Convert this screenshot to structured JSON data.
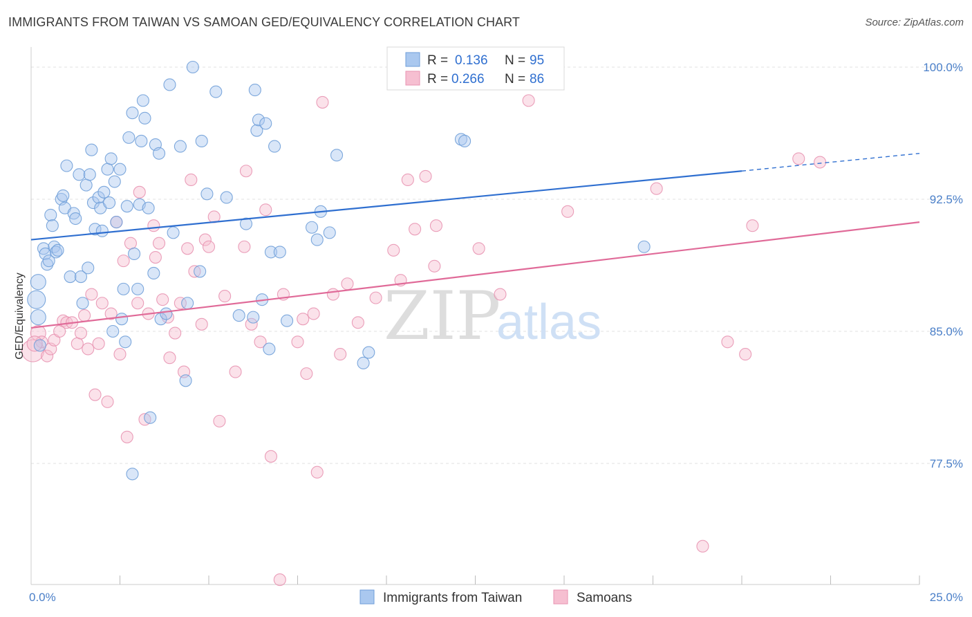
{
  "header": {
    "title": "IMMIGRANTS FROM TAIWAN VS SAMOAN GED/EQUIVALENCY CORRELATION CHART",
    "source": "Source: ZipAtlas.com"
  },
  "colors": {
    "blue_fill": "#aac8ef",
    "blue_stroke": "#6f9ed8",
    "blue_line": "#2f6fd0",
    "pink_fill": "#f6bfd1",
    "pink_stroke": "#e893b1",
    "pink_line": "#e06a98",
    "value_text": "#2f6fd0",
    "grid": "#e0e0e0",
    "watermark": "#d8d8d8"
  },
  "legend": {
    "r_label": "R =",
    "n_label": "N =",
    "rows": [
      {
        "r": "0.136",
        "n": "95"
      },
      {
        "r": "0.266",
        "n": "86"
      }
    ]
  },
  "watermark": {
    "zip": "ZIP",
    "atlas": "atlas"
  },
  "chart_data": {
    "type": "scatter",
    "xlabel": "",
    "ylabel": "GED/Equivalency",
    "xlim": [
      0,
      25
    ],
    "ylim": [
      71,
      100.7
    ],
    "x_tick_labels": [
      {
        "value": 0,
        "label": "0.0%"
      },
      {
        "value": 25,
        "label": "25.0%"
      }
    ],
    "y_tick_labels": [
      {
        "value": 100,
        "label": "100.0%"
      },
      {
        "value": 92.5,
        "label": "92.5%"
      },
      {
        "value": 85,
        "label": "85.0%"
      },
      {
        "value": 77.5,
        "label": "77.5%"
      }
    ],
    "grid": "horizontal dashed",
    "series": [
      {
        "name": "Immigrants from Taiwan",
        "color": "#6f9ed8",
        "trend": {
          "x": [
            0,
            20,
            25
          ],
          "y": [
            90.2,
            94.1,
            95.1
          ],
          "dashed_from": 20
        },
        "points": [
          {
            "x": 0.15,
            "y": 86.8,
            "s": 3
          },
          {
            "x": 0.2,
            "y": 85.8,
            "s": 2
          },
          {
            "x": 0.2,
            "y": 87.8,
            "s": 2
          },
          {
            "x": 0.25,
            "y": 84.2,
            "s": 1
          },
          {
            "x": 0.35,
            "y": 89.7,
            "s": 1
          },
          {
            "x": 0.4,
            "y": 89.4,
            "s": 1
          },
          {
            "x": 0.45,
            "y": 88.8,
            "s": 1
          },
          {
            "x": 0.5,
            "y": 89.0,
            "s": 1
          },
          {
            "x": 0.55,
            "y": 91.6,
            "s": 1
          },
          {
            "x": 0.6,
            "y": 91.0,
            "s": 1
          },
          {
            "x": 0.65,
            "y": 89.8,
            "s": 1
          },
          {
            "x": 0.7,
            "y": 89.5,
            "s": 1
          },
          {
            "x": 0.75,
            "y": 89.6,
            "s": 1
          },
          {
            "x": 0.85,
            "y": 92.5,
            "s": 1
          },
          {
            "x": 0.9,
            "y": 92.7,
            "s": 1
          },
          {
            "x": 0.95,
            "y": 92.0,
            "s": 1
          },
          {
            "x": 1.0,
            "y": 94.4,
            "s": 1
          },
          {
            "x": 1.1,
            "y": 88.1,
            "s": 1
          },
          {
            "x": 1.2,
            "y": 91.7,
            "s": 1
          },
          {
            "x": 1.25,
            "y": 91.4,
            "s": 1
          },
          {
            "x": 1.35,
            "y": 93.9,
            "s": 1
          },
          {
            "x": 1.4,
            "y": 88.1,
            "s": 1
          },
          {
            "x": 1.45,
            "y": 86.6,
            "s": 1
          },
          {
            "x": 1.55,
            "y": 93.3,
            "s": 1
          },
          {
            "x": 1.6,
            "y": 88.6,
            "s": 1
          },
          {
            "x": 1.65,
            "y": 93.9,
            "s": 1
          },
          {
            "x": 1.7,
            "y": 95.3,
            "s": 1
          },
          {
            "x": 1.75,
            "y": 92.3,
            "s": 1
          },
          {
            "x": 1.8,
            "y": 90.8,
            "s": 1
          },
          {
            "x": 1.9,
            "y": 92.6,
            "s": 1
          },
          {
            "x": 1.95,
            "y": 92.0,
            "s": 1
          },
          {
            "x": 2.0,
            "y": 90.7,
            "s": 1
          },
          {
            "x": 2.05,
            "y": 92.9,
            "s": 1
          },
          {
            "x": 2.15,
            "y": 94.2,
            "s": 1
          },
          {
            "x": 2.2,
            "y": 92.3,
            "s": 1
          },
          {
            "x": 2.25,
            "y": 94.8,
            "s": 1
          },
          {
            "x": 2.3,
            "y": 85.0,
            "s": 1
          },
          {
            "x": 2.35,
            "y": 93.5,
            "s": 1
          },
          {
            "x": 2.4,
            "y": 91.2,
            "s": 1
          },
          {
            "x": 2.5,
            "y": 94.2,
            "s": 1
          },
          {
            "x": 2.55,
            "y": 85.7,
            "s": 1
          },
          {
            "x": 2.6,
            "y": 87.4,
            "s": 1
          },
          {
            "x": 2.65,
            "y": 84.4,
            "s": 1
          },
          {
            "x": 2.7,
            "y": 92.1,
            "s": 1
          },
          {
            "x": 2.75,
            "y": 96.0,
            "s": 1
          },
          {
            "x": 2.85,
            "y": 97.4,
            "s": 1
          },
          {
            "x": 2.9,
            "y": 89.4,
            "s": 1
          },
          {
            "x": 3.0,
            "y": 87.4,
            "s": 1
          },
          {
            "x": 3.05,
            "y": 92.2,
            "s": 1
          },
          {
            "x": 3.1,
            "y": 95.8,
            "s": 1
          },
          {
            "x": 3.15,
            "y": 98.1,
            "s": 1
          },
          {
            "x": 3.2,
            "y": 97.1,
            "s": 1
          },
          {
            "x": 3.3,
            "y": 92.0,
            "s": 1
          },
          {
            "x": 3.35,
            "y": 80.1,
            "s": 1
          },
          {
            "x": 3.45,
            "y": 88.3,
            "s": 1
          },
          {
            "x": 3.5,
            "y": 95.6,
            "s": 1
          },
          {
            "x": 3.6,
            "y": 95.1,
            "s": 1
          },
          {
            "x": 3.65,
            "y": 85.7,
            "s": 1
          },
          {
            "x": 3.8,
            "y": 86.0,
            "s": 1
          },
          {
            "x": 3.9,
            "y": 99.0,
            "s": 1
          },
          {
            "x": 4.0,
            "y": 90.6,
            "s": 1
          },
          {
            "x": 4.2,
            "y": 95.5,
            "s": 1
          },
          {
            "x": 4.35,
            "y": 82.2,
            "s": 1
          },
          {
            "x": 4.4,
            "y": 86.6,
            "s": 1
          },
          {
            "x": 4.55,
            "y": 100.0,
            "s": 1
          },
          {
            "x": 4.75,
            "y": 88.4,
            "s": 1
          },
          {
            "x": 4.8,
            "y": 95.8,
            "s": 1
          },
          {
            "x": 4.95,
            "y": 92.8,
            "s": 1
          },
          {
            "x": 5.2,
            "y": 98.6,
            "s": 1
          },
          {
            "x": 5.5,
            "y": 92.6,
            "s": 1
          },
          {
            "x": 5.85,
            "y": 85.9,
            "s": 1
          },
          {
            "x": 6.05,
            "y": 91.1,
            "s": 1
          },
          {
            "x": 6.25,
            "y": 85.8,
            "s": 1
          },
          {
            "x": 6.3,
            "y": 98.7,
            "s": 1
          },
          {
            "x": 6.35,
            "y": 96.4,
            "s": 1
          },
          {
            "x": 6.4,
            "y": 97.0,
            "s": 1
          },
          {
            "x": 6.5,
            "y": 86.8,
            "s": 1
          },
          {
            "x": 6.6,
            "y": 96.8,
            "s": 1
          },
          {
            "x": 6.7,
            "y": 84.0,
            "s": 1
          },
          {
            "x": 6.75,
            "y": 89.5,
            "s": 1
          },
          {
            "x": 6.85,
            "y": 95.5,
            "s": 1
          },
          {
            "x": 7.0,
            "y": 89.5,
            "s": 1
          },
          {
            "x": 7.2,
            "y": 85.6,
            "s": 1
          },
          {
            "x": 7.9,
            "y": 90.9,
            "s": 1
          },
          {
            "x": 8.05,
            "y": 90.2,
            "s": 1
          },
          {
            "x": 8.15,
            "y": 91.8,
            "s": 1
          },
          {
            "x": 8.4,
            "y": 90.6,
            "s": 1
          },
          {
            "x": 8.6,
            "y": 95.0,
            "s": 1
          },
          {
            "x": 9.35,
            "y": 83.2,
            "s": 1
          },
          {
            "x": 9.5,
            "y": 83.8,
            "s": 1
          },
          {
            "x": 11.9,
            "y": 100.0,
            "s": 1
          },
          {
            "x": 12.1,
            "y": 95.9,
            "s": 1
          },
          {
            "x": 12.2,
            "y": 95.8,
            "s": 1
          },
          {
            "x": 17.25,
            "y": 89.8,
            "s": 1
          },
          {
            "x": 2.85,
            "y": 76.9,
            "s": 1
          }
        ]
      },
      {
        "name": "Samoans",
        "color": "#e893b1",
        "trend": {
          "x": [
            0,
            25
          ],
          "y": [
            85.2,
            91.2
          ]
        },
        "points": [
          {
            "x": 0.05,
            "y": 83.9,
            "s": 4
          },
          {
            "x": 0.2,
            "y": 84.9,
            "s": 2
          },
          {
            "x": 0.3,
            "y": 84.4,
            "s": 1
          },
          {
            "x": 0.45,
            "y": 83.6,
            "s": 1
          },
          {
            "x": 0.55,
            "y": 84.0,
            "s": 1
          },
          {
            "x": 0.65,
            "y": 84.5,
            "s": 1
          },
          {
            "x": 0.8,
            "y": 85.0,
            "s": 1
          },
          {
            "x": 0.9,
            "y": 85.6,
            "s": 1
          },
          {
            "x": 1.0,
            "y": 85.5,
            "s": 1
          },
          {
            "x": 1.15,
            "y": 85.5,
            "s": 1
          },
          {
            "x": 1.3,
            "y": 84.3,
            "s": 1
          },
          {
            "x": 1.4,
            "y": 84.9,
            "s": 1
          },
          {
            "x": 1.5,
            "y": 85.9,
            "s": 1
          },
          {
            "x": 1.6,
            "y": 84.0,
            "s": 1
          },
          {
            "x": 1.7,
            "y": 87.1,
            "s": 1
          },
          {
            "x": 1.8,
            "y": 81.4,
            "s": 1
          },
          {
            "x": 1.9,
            "y": 84.3,
            "s": 1
          },
          {
            "x": 2.0,
            "y": 86.6,
            "s": 1
          },
          {
            "x": 2.15,
            "y": 81.0,
            "s": 1
          },
          {
            "x": 2.25,
            "y": 86.0,
            "s": 1
          },
          {
            "x": 2.4,
            "y": 91.2,
            "s": 1
          },
          {
            "x": 2.5,
            "y": 83.7,
            "s": 1
          },
          {
            "x": 2.6,
            "y": 89.0,
            "s": 1
          },
          {
            "x": 2.7,
            "y": 79.0,
            "s": 1
          },
          {
            "x": 2.8,
            "y": 90.0,
            "s": 1
          },
          {
            "x": 3.0,
            "y": 86.6,
            "s": 1
          },
          {
            "x": 3.05,
            "y": 92.9,
            "s": 1
          },
          {
            "x": 3.2,
            "y": 80.0,
            "s": 1
          },
          {
            "x": 3.3,
            "y": 86.0,
            "s": 1
          },
          {
            "x": 3.45,
            "y": 91.0,
            "s": 1
          },
          {
            "x": 3.5,
            "y": 89.2,
            "s": 1
          },
          {
            "x": 3.6,
            "y": 90.0,
            "s": 1
          },
          {
            "x": 3.7,
            "y": 86.8,
            "s": 1
          },
          {
            "x": 3.85,
            "y": 85.8,
            "s": 1
          },
          {
            "x": 3.9,
            "y": 83.5,
            "s": 1
          },
          {
            "x": 4.05,
            "y": 84.9,
            "s": 1
          },
          {
            "x": 4.2,
            "y": 86.6,
            "s": 1
          },
          {
            "x": 4.3,
            "y": 82.7,
            "s": 1
          },
          {
            "x": 4.4,
            "y": 89.7,
            "s": 1
          },
          {
            "x": 4.5,
            "y": 93.6,
            "s": 1
          },
          {
            "x": 4.6,
            "y": 88.4,
            "s": 1
          },
          {
            "x": 4.8,
            "y": 85.4,
            "s": 1
          },
          {
            "x": 4.9,
            "y": 90.2,
            "s": 1
          },
          {
            "x": 5.0,
            "y": 89.8,
            "s": 1
          },
          {
            "x": 5.15,
            "y": 91.5,
            "s": 1
          },
          {
            "x": 5.3,
            "y": 79.9,
            "s": 1
          },
          {
            "x": 5.45,
            "y": 87.0,
            "s": 1
          },
          {
            "x": 5.75,
            "y": 82.7,
            "s": 1
          },
          {
            "x": 6.0,
            "y": 89.8,
            "s": 1
          },
          {
            "x": 6.05,
            "y": 94.1,
            "s": 1
          },
          {
            "x": 6.2,
            "y": 85.4,
            "s": 1
          },
          {
            "x": 6.45,
            "y": 84.4,
            "s": 1
          },
          {
            "x": 6.6,
            "y": 91.9,
            "s": 1
          },
          {
            "x": 6.75,
            "y": 77.9,
            "s": 1
          },
          {
            "x": 7.0,
            "y": 70.9,
            "s": 1
          },
          {
            "x": 7.1,
            "y": 87.1,
            "s": 1
          },
          {
            "x": 7.5,
            "y": 84.4,
            "s": 1
          },
          {
            "x": 7.65,
            "y": 85.7,
            "s": 1
          },
          {
            "x": 7.75,
            "y": 82.6,
            "s": 1
          },
          {
            "x": 7.95,
            "y": 86.0,
            "s": 1
          },
          {
            "x": 8.05,
            "y": 77.0,
            "s": 1
          },
          {
            "x": 8.2,
            "y": 98.0,
            "s": 1
          },
          {
            "x": 8.5,
            "y": 87.1,
            "s": 1
          },
          {
            "x": 8.7,
            "y": 83.7,
            "s": 1
          },
          {
            "x": 8.9,
            "y": 87.7,
            "s": 1
          },
          {
            "x": 9.2,
            "y": 85.5,
            "s": 1
          },
          {
            "x": 9.7,
            "y": 86.9,
            "s": 1
          },
          {
            "x": 10.2,
            "y": 89.6,
            "s": 1
          },
          {
            "x": 10.4,
            "y": 87.9,
            "s": 1
          },
          {
            "x": 10.6,
            "y": 93.6,
            "s": 1
          },
          {
            "x": 10.8,
            "y": 90.8,
            "s": 1
          },
          {
            "x": 11.1,
            "y": 93.8,
            "s": 1
          },
          {
            "x": 11.35,
            "y": 88.7,
            "s": 1
          },
          {
            "x": 11.4,
            "y": 91.0,
            "s": 1
          },
          {
            "x": 12.6,
            "y": 89.7,
            "s": 1
          },
          {
            "x": 13.2,
            "y": 87.1,
            "s": 1
          },
          {
            "x": 14.0,
            "y": 98.1,
            "s": 1
          },
          {
            "x": 15.1,
            "y": 91.8,
            "s": 1
          },
          {
            "x": 17.6,
            "y": 93.1,
            "s": 1
          },
          {
            "x": 18.9,
            "y": 72.8,
            "s": 1
          },
          {
            "x": 19.6,
            "y": 84.4,
            "s": 1
          },
          {
            "x": 20.1,
            "y": 83.7,
            "s": 1
          },
          {
            "x": 20.3,
            "y": 91.0,
            "s": 1
          },
          {
            "x": 21.6,
            "y": 94.8,
            "s": 1
          },
          {
            "x": 22.2,
            "y": 94.6,
            "s": 1
          },
          {
            "x": 0.1,
            "y": 84.3,
            "s": 2
          }
        ]
      }
    ]
  }
}
